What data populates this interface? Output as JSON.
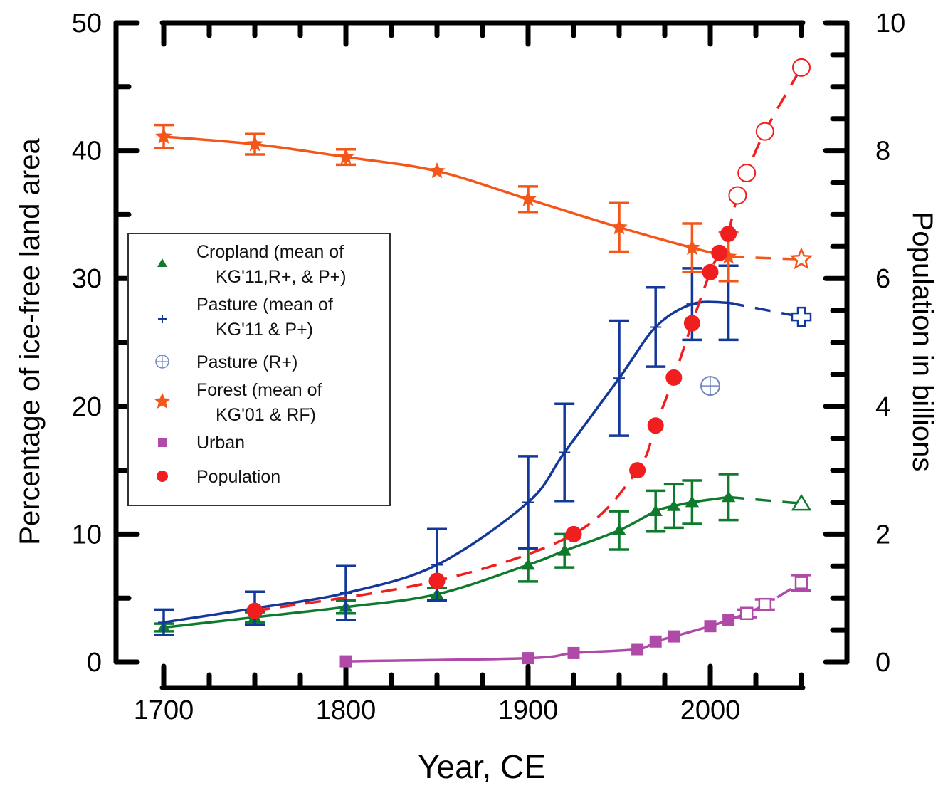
{
  "chart_data": {
    "type": "line",
    "title": "",
    "xlabel": "Year, CE",
    "ylabel_left": "Percentage of ice-free land area",
    "ylabel_right": "Population in billions",
    "xlim": [
      1700,
      2050
    ],
    "ylim_left": [
      0,
      50
    ],
    "ylim_right": [
      0,
      10
    ],
    "x_ticks": [
      1700,
      1800,
      1900,
      2000
    ],
    "x_minor_step": 25,
    "y_left_ticks": [
      0,
      10,
      20,
      30,
      40,
      50
    ],
    "y_left_minor_step": 5,
    "y_right_ticks": [
      0,
      2,
      4,
      6,
      8,
      10
    ],
    "y_right_minor_step": 0.5,
    "grid": false,
    "legend_position": "center-left",
    "legend": [
      {
        "key": "cropland",
        "lines": [
          "Cropland (mean of",
          "KG'11,R+, & P+)"
        ]
      },
      {
        "key": "pasture",
        "lines": [
          "Pasture (mean of",
          "KG'11 & P+)"
        ]
      },
      {
        "key": "pasture_r",
        "lines": [
          "Pasture (R+)"
        ]
      },
      {
        "key": "forest",
        "lines": [
          "Forest (mean of",
          "KG'01 & RF)"
        ]
      },
      {
        "key": "urban",
        "lines": [
          "Urban"
        ]
      },
      {
        "key": "population",
        "lines": [
          "Population"
        ]
      }
    ],
    "colors": {
      "cropland": "#0e7a2c",
      "pasture": "#14379a",
      "pasture_r": "#6f87bf",
      "forest": "#f4561a",
      "urban": "#b04aa8",
      "population": "#f01e1e"
    },
    "series": [
      {
        "key": "cropland",
        "name": "Cropland (mean of KG'11,R+, & P+)",
        "axis": "left",
        "marker": "triangle",
        "x": [
          1700,
          1750,
          1800,
          1850,
          1900,
          1920,
          1950,
          1970,
          1980,
          1990,
          2010
        ],
        "y": [
          2.7,
          3.5,
          4.3,
          5.3,
          7.6,
          8.7,
          10.3,
          11.8,
          12.2,
          12.5,
          12.9
        ],
        "err": [
          0.3,
          0.4,
          0.5,
          0.5,
          1.3,
          1.3,
          1.5,
          1.6,
          1.7,
          1.7,
          1.8
        ],
        "projection": {
          "x": [
            2050
          ],
          "y": [
            12.4
          ]
        }
      },
      {
        "key": "pasture",
        "name": "Pasture (mean of KG'11 & P+)",
        "axis": "left",
        "marker": "plus",
        "x": [
          1700,
          1750,
          1800,
          1850,
          1900,
          1920,
          1950,
          1970,
          1990,
          2010
        ],
        "y": [
          3.1,
          4.2,
          5.4,
          7.6,
          12.5,
          16.4,
          22.2,
          26.2,
          28.0,
          28.1
        ],
        "err": [
          1.0,
          1.3,
          2.1,
          2.8,
          3.6,
          3.8,
          4.5,
          3.1,
          2.8,
          2.9
        ],
        "projection": {
          "x": [
            2050
          ],
          "y": [
            27.0
          ]
        }
      },
      {
        "key": "pasture_r",
        "name": "Pasture (R+)",
        "axis": "left",
        "marker": "circle-plus",
        "x": [
          2000
        ],
        "y": [
          21.6
        ]
      },
      {
        "key": "forest",
        "name": "Forest (mean of KG'01 & RF)",
        "axis": "left",
        "marker": "star",
        "x": [
          1700,
          1750,
          1800,
          1850,
          1900,
          1950,
          1990,
          2010
        ],
        "y": [
          41.1,
          40.5,
          39.5,
          38.4,
          36.2,
          34.0,
          32.4,
          31.7
        ],
        "err": [
          0.9,
          0.8,
          0.6,
          0.2,
          1.0,
          1.9,
          1.9,
          1.9
        ],
        "projection": {
          "x": [
            2050
          ],
          "y": [
            31.5
          ]
        }
      },
      {
        "key": "urban",
        "name": "Urban",
        "axis": "left",
        "marker": "square",
        "x": [
          1800,
          1900,
          1925,
          1960,
          1970,
          1980,
          2000,
          2010
        ],
        "y": [
          0.05,
          0.3,
          0.7,
          1.0,
          1.6,
          2.0,
          2.8,
          3.3
        ],
        "err": [
          0,
          0,
          0,
          0.15,
          0.2,
          0.2,
          0.25,
          0.25
        ],
        "projection": {
          "x": [
            2020,
            2030,
            2050
          ],
          "y": [
            3.8,
            4.5,
            6.2
          ],
          "err": [
            0.3,
            0.4,
            0.6
          ]
        }
      },
      {
        "key": "population",
        "name": "Population",
        "axis": "right",
        "marker": "circle",
        "x": [
          1750,
          1850,
          1925,
          1960,
          1970,
          1980,
          1990,
          2000,
          2005,
          2010
        ],
        "y": [
          0.8,
          1.27,
          2.0,
          3.0,
          3.7,
          4.45,
          5.3,
          6.1,
          6.4,
          6.7
        ],
        "projection": {
          "x": [
            2015,
            2020,
            2030,
            2050
          ],
          "y": [
            7.3,
            7.65,
            8.3,
            9.3
          ]
        }
      }
    ]
  }
}
